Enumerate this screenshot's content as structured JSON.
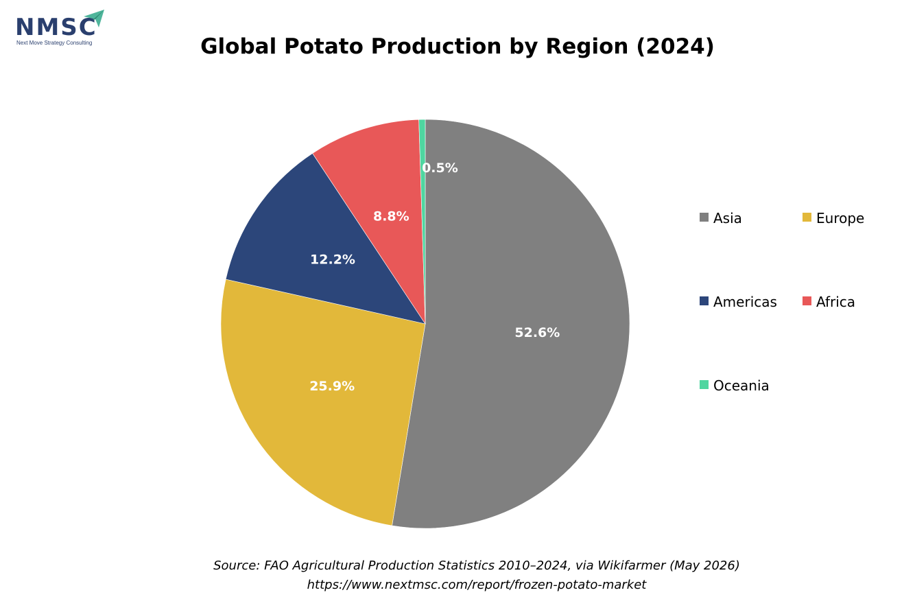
{
  "logo": {
    "name": "NMSC",
    "tagline": "Next Move Strategy Consulting",
    "color": "#2a3f6e",
    "accent_color": "#4fb59b"
  },
  "chart_data": {
    "type": "pie",
    "title": "Global Potato Production by Region (2024)",
    "categories": [
      "Asia",
      "Europe",
      "Americas",
      "Africa",
      "Oceania"
    ],
    "values": [
      52.6,
      25.9,
      12.2,
      8.8,
      0.5
    ],
    "labels": [
      "52.6%",
      "25.9%",
      "12.2%",
      "8.8%",
      "0.5%"
    ],
    "colors": [
      "#808080",
      "#e2b83a",
      "#2c467a",
      "#e85858",
      "#4fd6a0"
    ],
    "legend_position": "right",
    "start": "12 o'clock, clockwise"
  },
  "source": {
    "line1": "Source: FAO Agricultural Production Statistics 2010–2024, via Wikifarmer (May 2026)",
    "line2": "https://www.nextmsc.com/report/frozen-potato-market"
  }
}
